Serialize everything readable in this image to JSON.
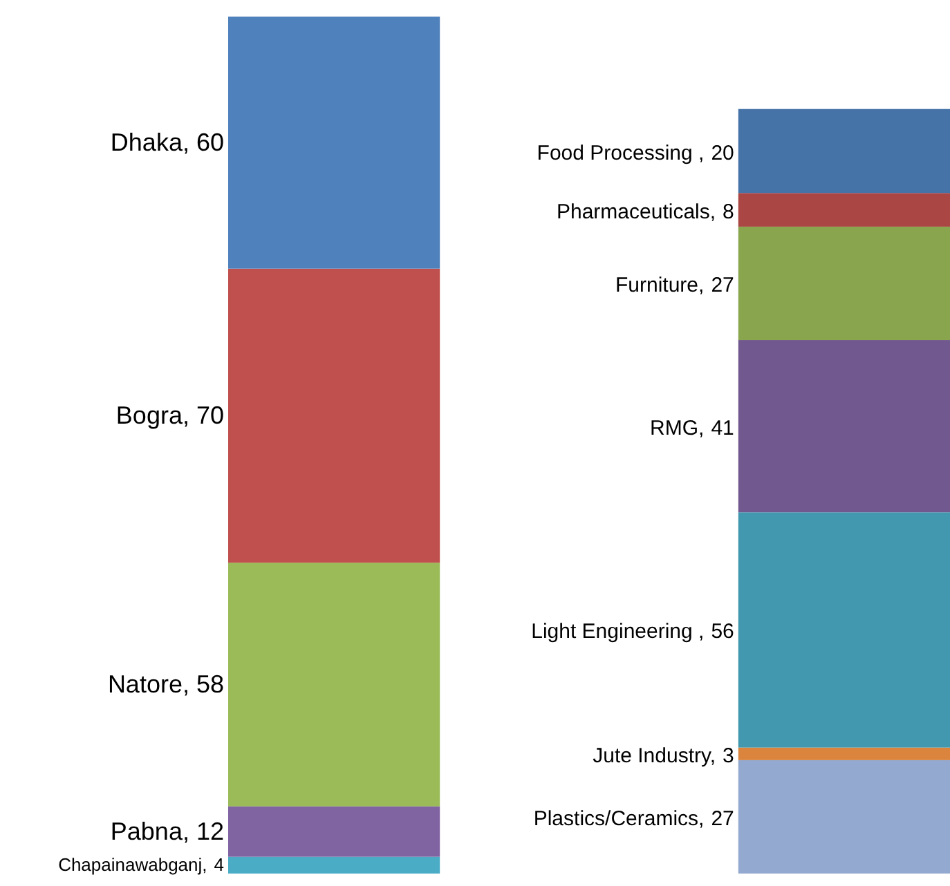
{
  "chart_data": {
    "type": "bar",
    "stacked": true,
    "categories": [
      null,
      null
    ],
    "data_labels": true,
    "series": [
      {
        "name": "Chapainawabganj,",
        "color": "#4bacc6",
        "values": [
          4,
          null
        ]
      },
      {
        "name": "Pabna,",
        "color": "#8064a2",
        "values": [
          12,
          null
        ]
      },
      {
        "name": "Natore,",
        "color": "#9bbb59",
        "values": [
          58,
          null
        ]
      },
      {
        "name": "Bogra,",
        "color": "#c0504d",
        "values": [
          70,
          null
        ]
      },
      {
        "name": "Dhaka,",
        "color": "#4f81bd",
        "values": [
          60,
          null
        ]
      },
      {
        "name": "Plastics/Ceramics,",
        "color": "#93a9cf",
        "values": [
          null,
          27
        ]
      },
      {
        "name": "Jute Industry,",
        "color": "#db843d",
        "values": [
          null,
          3
        ]
      },
      {
        "name": "Light Engineering ,",
        "color": "#4198af",
        "values": [
          null,
          56
        ]
      },
      {
        "name": "RMG,",
        "color": "#71588f",
        "values": [
          null,
          41
        ]
      },
      {
        "name": "Furniture,",
        "color": "#89a54e",
        "values": [
          null,
          27
        ]
      },
      {
        "name": "Pharmaceuticals,",
        "color": "#aa4643",
        "values": [
          null,
          8
        ]
      },
      {
        "name": "Food Processing ,",
        "color": "#4572a7",
        "values": [
          null,
          20
        ]
      }
    ]
  }
}
